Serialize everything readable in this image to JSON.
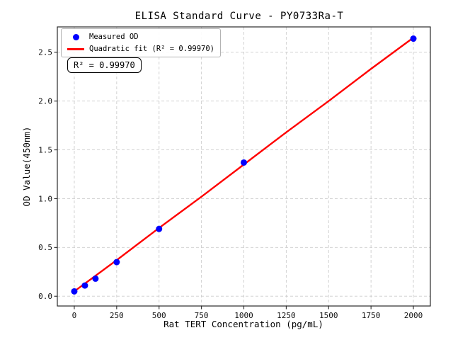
{
  "figure": {
    "title": "ELISA Standard Curve - PY0733Ra-T",
    "annotation": "R² = 0.99970"
  },
  "legend": {
    "position": "upper-left",
    "items": [
      {
        "label": "Measured OD",
        "marker": "circle",
        "color": "#0000ff"
      },
      {
        "label": "Quadratic fit (R² = 0.99970)",
        "marker": "line",
        "color": "#ff0000"
      }
    ]
  },
  "chart_data": {
    "type": "scatter",
    "title": "ELISA Standard Curve - PY0733Ra-T",
    "xlabel": "Rat TERT Concentration (pg/mL)",
    "ylabel": "OD Value(450nm)",
    "xlim": [
      -100,
      2100
    ],
    "ylim": [
      -0.1,
      2.76
    ],
    "xticks": [
      0,
      250,
      500,
      750,
      1000,
      1250,
      1500,
      1750,
      2000
    ],
    "yticks": [
      0,
      0.5,
      1,
      1.5,
      2,
      2.5
    ],
    "ytick_labels": [
      "0.0",
      "0.5",
      "1.0",
      "1.5",
      "2.0",
      "2.5"
    ],
    "grid": true,
    "grid_style": "dashed",
    "r_squared": "0.99970",
    "series": [
      {
        "name": "Measured OD",
        "type": "scatter",
        "color": "#0000ff",
        "x": [
          0,
          62.5,
          125,
          250,
          500,
          1000,
          2000
        ],
        "y": [
          0.05,
          0.11,
          0.18,
          0.35,
          0.69,
          1.37,
          2.64
        ]
      },
      {
        "name": "Quadratic fit (R² = 0.99970)",
        "type": "line",
        "color": "#ff0000",
        "x": [
          0,
          250,
          500,
          750,
          1000,
          1250,
          1500,
          1750,
          2000
        ],
        "y": [
          0.05,
          0.37,
          0.7,
          1.02,
          1.35,
          1.68,
          2.0,
          2.33,
          2.65
        ]
      }
    ]
  }
}
